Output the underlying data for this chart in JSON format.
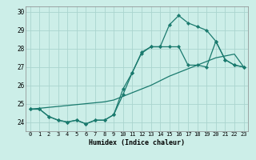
{
  "xlabel": "Humidex (Indice chaleur)",
  "background_color": "#cceee8",
  "grid_color": "#aad4ce",
  "line_color": "#1a7a6e",
  "x_values": [
    0,
    1,
    2,
    3,
    4,
    5,
    6,
    7,
    8,
    9,
    10,
    11,
    12,
    13,
    14,
    15,
    16,
    17,
    18,
    19,
    20,
    21,
    22,
    23
  ],
  "line1": [
    24.7,
    24.7,
    24.3,
    24.1,
    24.0,
    24.1,
    23.9,
    24.1,
    24.1,
    24.4,
    25.8,
    26.7,
    27.8,
    28.1,
    28.1,
    29.3,
    29.8,
    29.4,
    29.2,
    29.0,
    28.4,
    27.4,
    27.1,
    27.0
  ],
  "line2": [
    24.7,
    24.7,
    24.3,
    24.1,
    24.0,
    24.1,
    23.9,
    24.1,
    24.1,
    24.4,
    25.5,
    26.7,
    27.75,
    28.1,
    28.1,
    28.1,
    28.1,
    27.1,
    27.1,
    27.0,
    28.4,
    27.4,
    27.1,
    27.0
  ],
  "line3": [
    24.7,
    24.75,
    24.8,
    24.85,
    24.9,
    24.95,
    25.0,
    25.05,
    25.1,
    25.2,
    25.4,
    25.6,
    25.8,
    26.0,
    26.25,
    26.5,
    26.7,
    26.9,
    27.1,
    27.3,
    27.5,
    27.6,
    27.7,
    27.0
  ],
  "yticks": [
    24,
    25,
    26,
    27,
    28,
    29,
    30
  ],
  "ylim": [
    23.5,
    30.3
  ],
  "xlim": [
    -0.5,
    23.5
  ]
}
